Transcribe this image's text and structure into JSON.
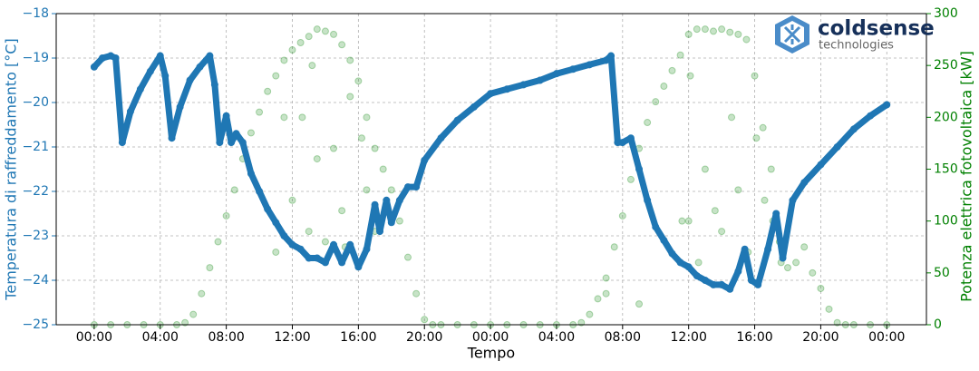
{
  "chart_data": {
    "type": "dual_scatter_line",
    "xlabel": "Tempo",
    "ylabel": "Temperatura di raffreddamento [°C]",
    "y2label": "Potenza elettrica fotovoltaica [kW]",
    "xlim": [
      -2.3,
      50.4
    ],
    "xticks": [
      {
        "value": 0,
        "label": "00:00"
      },
      {
        "value": 4,
        "label": "04:00"
      },
      {
        "value": 8,
        "label": "08:00"
      },
      {
        "value": 12,
        "label": "12:00"
      },
      {
        "value": 16,
        "label": "16:00"
      },
      {
        "value": 20,
        "label": "20:00"
      },
      {
        "value": 24,
        "label": "00:00"
      },
      {
        "value": 28,
        "label": "04:00"
      },
      {
        "value": 32,
        "label": "08:00"
      },
      {
        "value": 36,
        "label": "12:00"
      },
      {
        "value": 40,
        "label": "16:00"
      },
      {
        "value": 44,
        "label": "20:00"
      },
      {
        "value": 48,
        "label": "00:00"
      }
    ],
    "ylim": [
      -25,
      -18
    ],
    "yticks": [
      {
        "value": -25,
        "label": "−25"
      },
      {
        "value": -24,
        "label": "−24"
      },
      {
        "value": -23,
        "label": "−23"
      },
      {
        "value": -22,
        "label": "−22"
      },
      {
        "value": -21,
        "label": "−21"
      },
      {
        "value": -20,
        "label": "−20"
      },
      {
        "value": -19,
        "label": "−19"
      },
      {
        "value": -18,
        "label": "−18"
      }
    ],
    "y2lim": [
      0,
      300
    ],
    "y2ticks": [
      0,
      50,
      100,
      150,
      200,
      250,
      300
    ],
    "grid": true,
    "series": [
      {
        "kind": "line",
        "color": "#1f77b4",
        "axis": "y",
        "x": [
          0,
          0.5,
          1,
          1.3,
          1.7,
          2.2,
          2.8,
          3.4,
          4.0,
          4.3,
          4.7,
          5.2,
          5.8,
          6.4,
          7.0,
          7.3,
          7.6,
          8.0,
          8.3,
          8.6,
          9.0,
          9.5,
          10,
          10.5,
          11,
          11.5,
          12,
          12.5,
          13,
          13.5,
          14,
          14.5,
          15,
          15.5,
          16,
          16.5,
          17,
          17.3,
          17.7,
          18,
          18.5,
          19,
          19.5,
          20,
          21,
          22,
          23,
          24,
          25,
          26,
          27,
          28,
          29,
          30,
          31,
          31.3,
          31.7,
          32,
          32.5,
          33,
          33.5,
          34,
          34.5,
          35,
          35.5,
          36,
          36.5,
          37,
          37.5,
          38,
          38.5,
          39,
          39.4,
          39.8,
          40.2,
          40.8,
          41.3,
          41.7,
          42.3,
          43,
          44,
          45,
          46,
          47,
          48
        ],
        "values": [
          -19.2,
          -19.0,
          -18.95,
          -19.0,
          -20.9,
          -20.2,
          -19.7,
          -19.3,
          -18.95,
          -19.4,
          -20.8,
          -20.1,
          -19.5,
          -19.2,
          -18.95,
          -19.6,
          -20.9,
          -20.3,
          -20.9,
          -20.7,
          -20.9,
          -21.6,
          -22.0,
          -22.4,
          -22.7,
          -23.0,
          -23.2,
          -23.3,
          -23.5,
          -23.5,
          -23.6,
          -23.2,
          -23.6,
          -23.2,
          -23.7,
          -23.3,
          -22.3,
          -22.9,
          -22.2,
          -22.7,
          -22.2,
          -21.9,
          -21.9,
          -21.3,
          -20.8,
          -20.4,
          -20.1,
          -19.8,
          -19.7,
          -19.6,
          -19.5,
          -19.35,
          -19.25,
          -19.15,
          -19.05,
          -18.95,
          -20.9,
          -20.9,
          -20.8,
          -21.5,
          -22.2,
          -22.8,
          -23.1,
          -23.4,
          -23.6,
          -23.7,
          -23.9,
          -24.0,
          -24.1,
          -24.1,
          -24.2,
          -23.8,
          -23.3,
          -24.0,
          -24.1,
          -23.3,
          -22.5,
          -23.5,
          -22.2,
          -21.8,
          -21.4,
          -21.0,
          -20.6,
          -20.3,
          -20.05
        ]
      },
      {
        "kind": "scatter",
        "color": "#008000",
        "axis": "y2",
        "x": [
          0,
          1,
          2,
          3,
          4,
          5,
          21,
          22,
          23,
          24,
          25,
          26,
          27,
          28,
          29,
          46,
          47,
          48,
          5.5,
          6,
          6.5,
          7,
          7.5,
          8,
          8.5,
          9,
          9.5,
          10,
          10.5,
          11,
          11.5,
          12,
          12.5,
          13,
          13.5,
          14,
          14.5,
          15,
          15.5,
          16,
          16.5,
          17,
          17.5,
          18,
          18.5,
          19,
          19.5,
          20,
          20.5,
          29.5,
          30,
          30.5,
          31,
          31.5,
          32,
          32.5,
          33,
          33.5,
          34,
          34.5,
          35,
          35.5,
          36,
          36.5,
          37,
          37.5,
          38,
          38.5,
          39,
          39.5,
          40,
          40.5,
          41,
          41.5,
          42,
          42.5,
          43,
          43.5,
          44,
          44.5,
          45,
          45.5,
          11.5,
          12,
          13,
          13.5,
          14,
          14.5,
          15,
          15.5,
          16,
          16.5,
          17,
          11,
          13.2,
          15.2,
          16.2,
          12.6,
          31,
          33,
          36,
          36.6,
          37,
          37.6,
          38,
          38.6,
          39,
          39.6,
          40.1,
          40.6,
          41.1,
          41.6,
          35.6,
          36.1
        ],
        "values": [
          0,
          0,
          0,
          0,
          0,
          0,
          0,
          0,
          0,
          0,
          0,
          0,
          0,
          0,
          0,
          0,
          0,
          0,
          2,
          10,
          30,
          55,
          80,
          105,
          130,
          160,
          185,
          205,
          225,
          240,
          255,
          265,
          272,
          278,
          285,
          283,
          280,
          270,
          255,
          235,
          200,
          170,
          150,
          130,
          100,
          65,
          30,
          5,
          0,
          2,
          10,
          25,
          45,
          75,
          105,
          140,
          170,
          195,
          215,
          230,
          245,
          260,
          280,
          285,
          285,
          283,
          285,
          282,
          280,
          275,
          240,
          190,
          150,
          80,
          55,
          60,
          75,
          50,
          35,
          15,
          2,
          0,
          200,
          120,
          90,
          160,
          80,
          170,
          110,
          220,
          60,
          130,
          90,
          70,
          250,
          75,
          180,
          200,
          30,
          20,
          100,
          60,
          150,
          110,
          90,
          200,
          130,
          70,
          180,
          120,
          100,
          60,
          100,
          240
        ]
      }
    ],
    "logo": {
      "name": "coldsense",
      "tagline": "technologies"
    }
  }
}
